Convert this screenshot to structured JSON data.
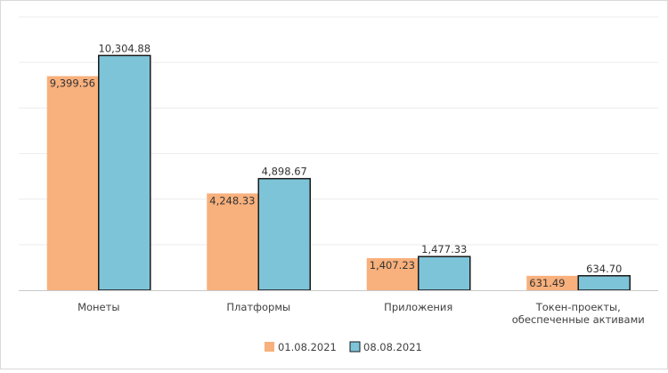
{
  "chart_data": {
    "type": "bar",
    "title": "",
    "xlabel": "",
    "ylabel": "",
    "ylim": [
      0,
      12000
    ],
    "grid": true,
    "legend_position": "bottom",
    "categories": [
      [
        "Монеты"
      ],
      [
        "Платформы"
      ],
      [
        "Приложения"
      ],
      [
        "Токен-проекты,",
        "обеспеченные активами"
      ]
    ],
    "series": [
      {
        "name": "01.08.2021",
        "color": "#f8b07c",
        "values": [
          9399.56,
          4248.33,
          1407.23,
          631.49
        ],
        "labels": [
          "9,399.56",
          "4,248.33",
          "1,407.23",
          "631.49"
        ]
      },
      {
        "name": "08.08.2021",
        "color": "#7ec4d9",
        "values": [
          10304.88,
          4898.67,
          1477.33,
          634.7
        ],
        "labels": [
          "10,304.88",
          "4,898.67",
          "1,477.33",
          "634.70"
        ]
      }
    ]
  }
}
